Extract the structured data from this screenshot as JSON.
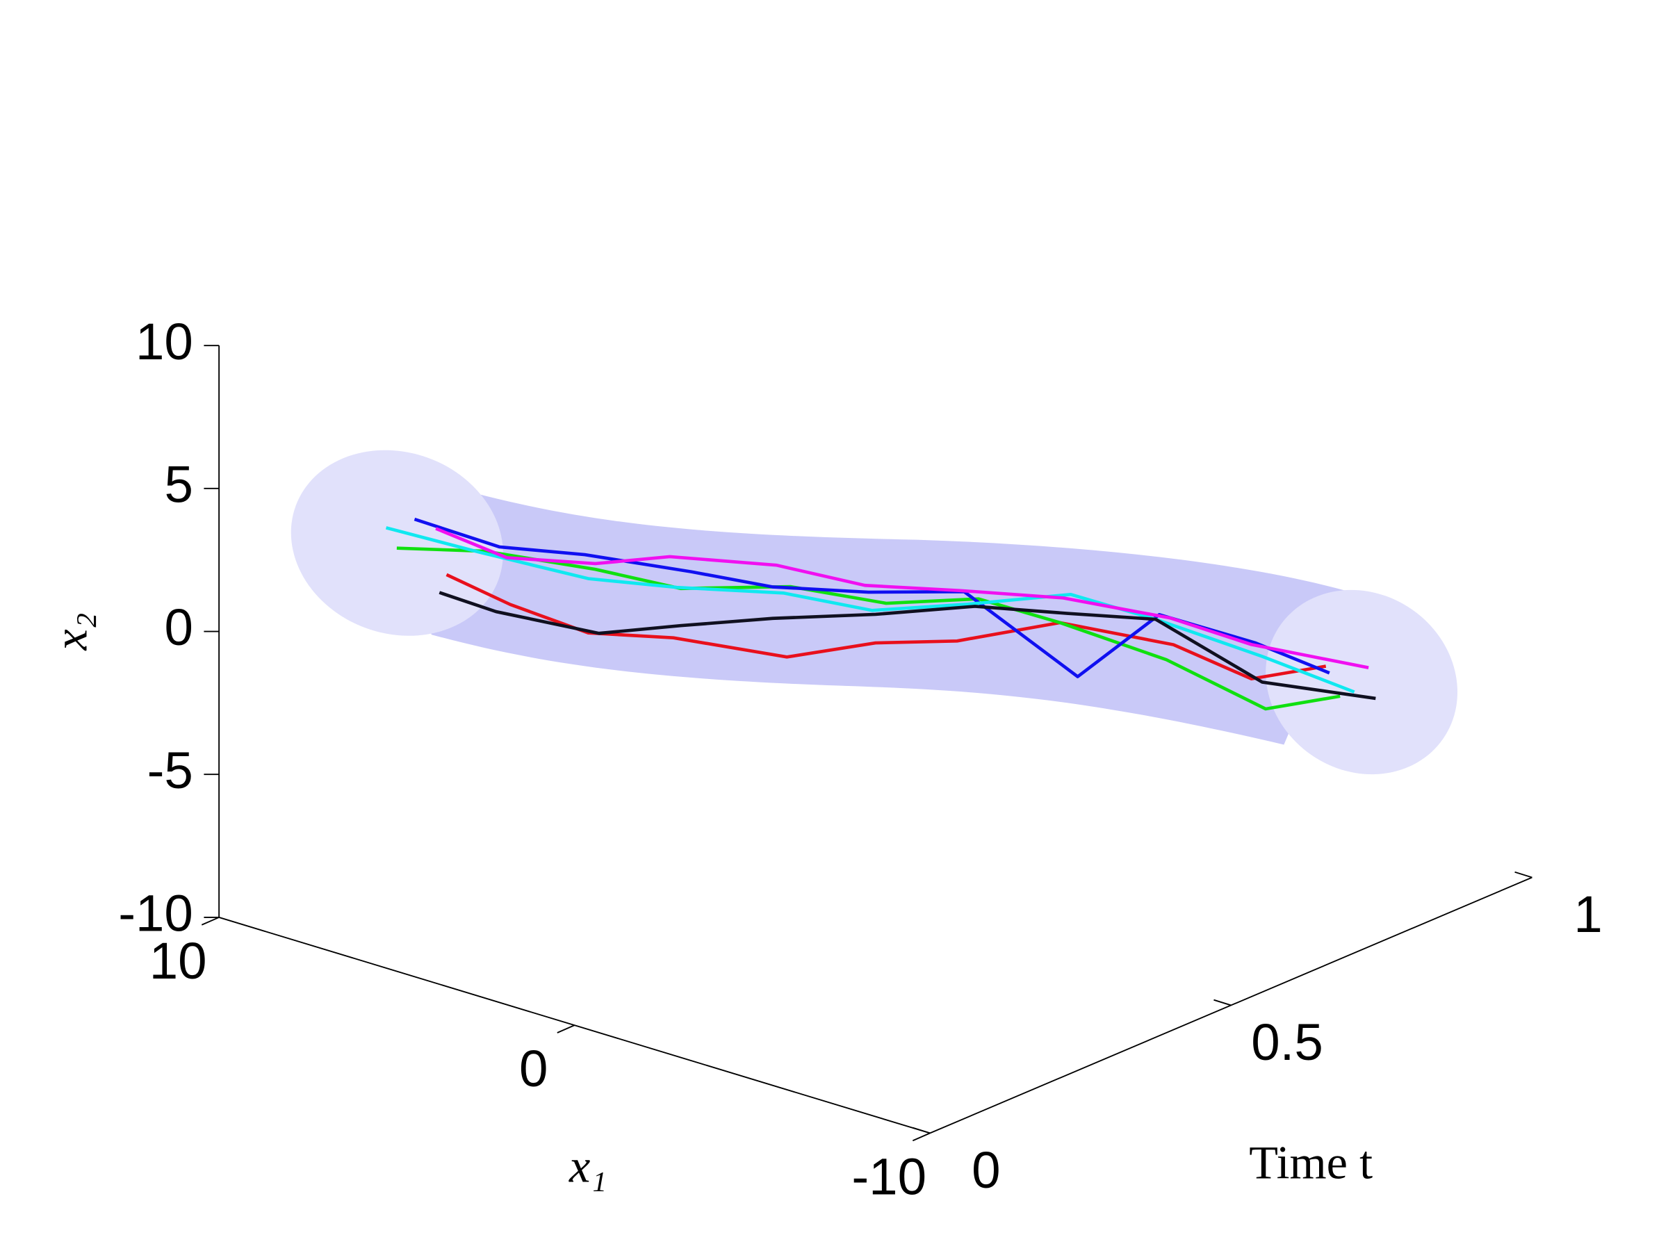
{
  "chart_data": {
    "type": "line3d",
    "xlabel": "x₁",
    "ylabel": "Time t",
    "zlabel": "x₂",
    "xlim": [
      -10,
      10
    ],
    "ylim": [
      0,
      1
    ],
    "zlim": [
      -10,
      10
    ],
    "xticks": [
      -10,
      0,
      10
    ],
    "yticks": [
      0,
      0.5,
      1
    ],
    "zticks": [
      -10,
      -5,
      0,
      5,
      10
    ],
    "y": [
      0,
      0.1,
      0.2,
      0.3,
      0.4,
      0.5,
      0.6,
      0.7,
      0.8,
      0.9,
      1
    ],
    "series": [
      {
        "color": "#e8101c",
        "x": [
          3.6,
          3.5,
          3,
          2.3,
          0.8,
          0,
          -0.6,
          -1.8,
          -3.3,
          -3.8,
          -4.2
        ],
        "z": [
          4.4,
          2.5,
          0.8,
          0,
          -1,
          -1.1,
          -1.7,
          -1.5,
          -2.6,
          -4.5,
          -4.8
        ]
      },
      {
        "color": "#10e010",
        "x": [
          5,
          4.2,
          2.8,
          2.1,
          0.7,
          -0.3,
          -1.2,
          -1.8,
          -3.1,
          -4.2,
          -4.6
        ],
        "z": [
          4.8,
          4.1,
          3.1,
          1.8,
          1.5,
          0.4,
          0,
          -1.5,
          -3.2,
          -5.4,
          -5.7
        ]
      },
      {
        "color": "#1010f0",
        "x": [
          4.5,
          3.8,
          3.1,
          1.8,
          1.2,
          0.2,
          -0.8,
          -2.3,
          -2.9,
          -3.9,
          -4.3
        ],
        "z": [
          6,
          4.4,
          3.5,
          2.5,
          1.3,
          0.6,
          0.1,
          -3.2,
          -1.7,
          -3.2,
          -5
        ]
      },
      {
        "color": "#10e8f0",
        "x": [
          5.3,
          4.4,
          3,
          2.2,
          0.9,
          0.1,
          -0.9,
          -2.1,
          -2.8,
          -4.1,
          -5
        ],
        "z": [
          5.4,
          4,
          2.7,
          1.8,
          1.2,
          0,
          -0.3,
          -0.4,
          -1.9,
          -3.6,
          -5.4
        ]
      },
      {
        "color": "#f010f0",
        "x": [
          3.9,
          3.6,
          2.8,
          2.4,
          1.1,
          0.3,
          -0.7,
          -1.9,
          -3.2,
          -3.8,
          -5.4
        ],
        "z": [
          5.9,
          4.1,
          3.3,
          2.8,
          2.1,
          0.8,
          0.1,
          -0.6,
          -1.7,
          -3.3,
          -4.4
        ]
      },
      {
        "color": "#101020",
        "x": [
          3.8,
          3.9,
          2.7,
          2.1,
          1.2,
          0,
          -1.1,
          -2,
          -2.8,
          -4.1,
          -5.6
        ],
        "z": [
          3.7,
          2.1,
          0.9,
          0.5,
          0.2,
          -0.1,
          -0.3,
          -1.1,
          -1.9,
          -4.5,
          -5.4
        ]
      }
    ]
  }
}
